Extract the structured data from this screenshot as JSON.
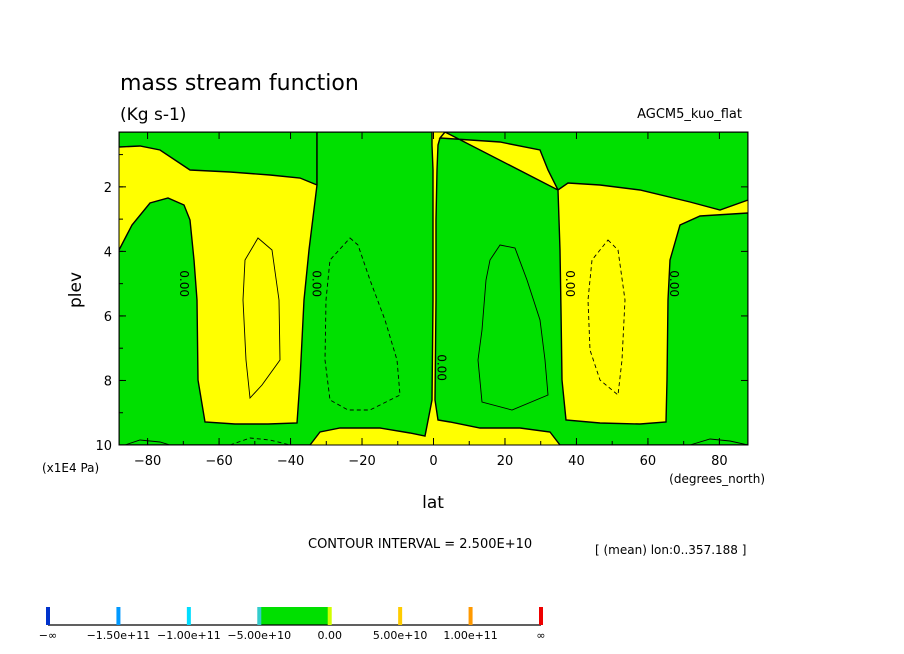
{
  "chart_data": {
    "type": "contour",
    "title": "mass stream function",
    "units": "(Kg s-1)",
    "model_label": "AGCM5_kuo_flat",
    "xlabel": "lat",
    "x_units": "(degrees_north)",
    "ylabel": "plev",
    "y_units": "(x1E4 Pa)",
    "xlim": [
      -88,
      88
    ],
    "ylim": [
      10,
      0.3
    ],
    "x_ticks": [
      -80,
      -60,
      -40,
      -20,
      0,
      20,
      40,
      60,
      80
    ],
    "x_tick_labels": [
      "−80",
      "−60",
      "−40",
      "−20",
      "0",
      "20",
      "40",
      "60",
      "80"
    ],
    "y_ticks": [
      2,
      4,
      6,
      8,
      10
    ],
    "y_tick_labels": [
      "2",
      "4",
      "6",
      "8",
      "10"
    ],
    "contour_interval_text": "CONTOUR INTERVAL = 2.500E+10",
    "mean_text": "[ (mean) lon:0..357.188 ]",
    "zero_line_labels": [
      {
        "text": "0.00",
        "lat": -72,
        "plev": 5.0
      },
      {
        "text": "0.00",
        "lat": -35,
        "plev": 5.0
      },
      {
        "text": "0.00",
        "lat": 0,
        "plev": 7.6
      },
      {
        "text": "0.00",
        "lat": 36,
        "plev": 5.0
      },
      {
        "text": "0.00",
        "lat": 65,
        "plev": 5.0
      }
    ],
    "colors": {
      "positive_fill": "#ffff00",
      "negative_fill": "#00e000",
      "line": "#000000"
    },
    "colorbar": {
      "labels": [
        "−∞",
        "−1.50e+11",
        "−1.00e+11",
        "−5.00e+10",
        "0.00",
        "5.00e+10",
        "1.00e+11",
        "∞"
      ],
      "tick_colors": [
        "#0033cc",
        "#0099ff",
        "#00ddff",
        "#33cccc",
        "#d0ff00",
        "#ffcc00",
        "#ff9900",
        "#ee0000"
      ],
      "filled_band": {
        "from": "−5.00e+10",
        "to": "0.00",
        "color": "#00e000"
      }
    }
  }
}
